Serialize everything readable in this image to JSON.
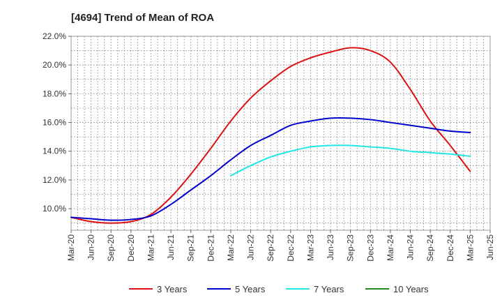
{
  "chart_data": {
    "type": "line",
    "title": "[4694]  Trend of Mean of ROA",
    "xlabel": "",
    "ylabel": "",
    "ylim": [
      8.5,
      22.0
    ],
    "yticks": [
      10.0,
      12.0,
      14.0,
      16.0,
      18.0,
      20.0,
      22.0
    ],
    "ytick_labels": [
      "10.0%",
      "12.0%",
      "14.0%",
      "16.0%",
      "18.0%",
      "20.0%",
      "22.0%"
    ],
    "x_tick_labels": [
      "Mar-20",
      "Jun-20",
      "Sep-20",
      "Dec-20",
      "Mar-21",
      "Jun-21",
      "Sep-21",
      "Dec-21",
      "Mar-22",
      "Jun-22",
      "Sep-22",
      "Dec-22",
      "Mar-23",
      "Jun-23",
      "Sep-23",
      "Dec-23",
      "Mar-24",
      "Jun-24",
      "Sep-24",
      "Dec-24",
      "Mar-25",
      "Jun-25"
    ],
    "grid": true,
    "legend_position": "bottom",
    "series": [
      {
        "name": "3 Years",
        "color": "#dd1111",
        "values": [
          9.4,
          9.1,
          9.0,
          9.1,
          9.6,
          10.8,
          12.4,
          14.2,
          16.1,
          17.7,
          18.9,
          19.9,
          20.5,
          20.9,
          21.2,
          21.0,
          20.2,
          18.3,
          16.1,
          14.4,
          12.6,
          null
        ]
      },
      {
        "name": "5 Years",
        "color": "#0000cc",
        "values": [
          9.4,
          9.3,
          9.2,
          9.25,
          9.5,
          10.3,
          11.3,
          12.3,
          13.4,
          14.4,
          15.1,
          15.8,
          16.1,
          16.3,
          16.3,
          16.2,
          16.0,
          15.8,
          15.6,
          15.4,
          15.3,
          null
        ]
      },
      {
        "name": "7 Years",
        "color": "#22e5e5",
        "values": [
          null,
          null,
          null,
          null,
          null,
          null,
          null,
          null,
          12.3,
          13.0,
          13.6,
          14.0,
          14.3,
          14.4,
          14.4,
          14.3,
          14.2,
          14.0,
          13.9,
          13.8,
          13.65,
          null
        ]
      },
      {
        "name": "10 Years",
        "color": "#228822",
        "values": [
          null,
          null,
          null,
          null,
          null,
          null,
          null,
          null,
          null,
          null,
          null,
          null,
          null,
          null,
          null,
          null,
          null,
          null,
          null,
          null,
          null,
          null
        ]
      }
    ]
  }
}
